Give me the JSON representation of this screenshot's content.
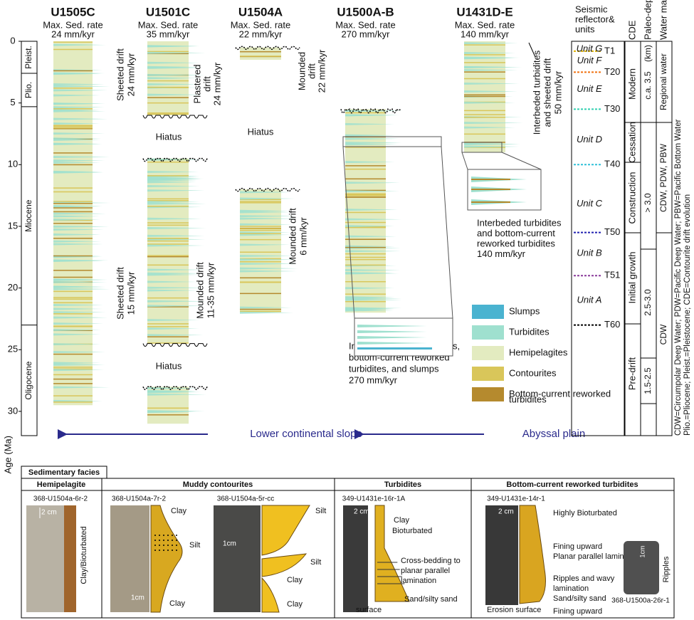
{
  "axis": {
    "label": "Age (Ma)",
    "ticks": [
      0,
      5,
      10,
      15,
      20,
      25,
      30
    ]
  },
  "epochs": [
    "Pleist.",
    "Plio.",
    "Miocene",
    "Oligocene"
  ],
  "sites": [
    {
      "name": "U1505C",
      "rate": "Max. Sed. rate",
      "value": "24 mm/kyr"
    },
    {
      "name": "U1501C",
      "rate": "Max. Sed. rate",
      "value": "35 mm/kyr"
    },
    {
      "name": "U1504A",
      "rate": "Max. Sed. rate",
      "value": "22 mm/kyr"
    },
    {
      "name": "U1500A-B",
      "rate": "Max. Sed. rate",
      "value": "270 mm/kyr"
    },
    {
      "name": "U1431D-E",
      "rate": "Max. Sed. rate",
      "value": "140 mm/kyr"
    }
  ],
  "annotations": {
    "sheeted_top": [
      "Sheeted drift",
      "24 mm/kyr"
    ],
    "plastered": [
      "Plastered",
      "drift",
      "24 mm/kyr"
    ],
    "mounded_top": [
      "Mounded",
      "drift",
      "22 mm/kyr"
    ],
    "hiatus": [
      "Hiatus",
      "Hiatus",
      "Hiatus"
    ],
    "sheeted_low": [
      "Sheeted drift",
      "15 mm/kyr"
    ],
    "mounded_mid": [
      "Mounded drift",
      "11-35 mm/kyr"
    ],
    "mounded_low": [
      "Mounded drift",
      "6 mm/kyr"
    ],
    "u1431_rot": [
      "Interbeded turbidites",
      "and sheeted drift",
      "50 mm/kyr"
    ],
    "u1431_inset": [
      "Interbeded turbidites",
      "and bottom-current",
      "reworked turbidites",
      "140 mm/kyr"
    ],
    "u1500_inset": [
      "Interbeded distal turbidites,",
      "bottom-current reworked",
      "turbidites, and slumps",
      "270 mm/kyr"
    ]
  },
  "seismic": {
    "title": [
      "Seismic",
      "reflector&",
      "units"
    ],
    "reflectors": [
      "T1",
      "T20",
      "T30",
      "T40",
      "T50",
      "T51",
      "T60"
    ],
    "units": [
      "Unit G",
      "Unit F",
      "Unit E",
      "Unit D",
      "Unit C",
      "Unit B",
      "Unit A"
    ]
  },
  "cde": {
    "title": "CDE",
    "phases": [
      "Modern",
      "Cessation",
      "Construction",
      "Initial growth",
      "Pre-drift"
    ]
  },
  "paleodepth": {
    "title": "Paleo-depth",
    "items": [
      "(km)",
      "c.a. 3.5",
      "> 3.0",
      "2.5-3.0",
      "1.5-2.5"
    ]
  },
  "watermass": {
    "title": "Water mass",
    "items": [
      "Regional water",
      "CDW, PDW, PBW",
      "CDW"
    ]
  },
  "legend": [
    "Slumps",
    "Turbidites",
    "Hemipelagites",
    "Contourites",
    "Bottom-current reworked",
    "turbidites"
  ],
  "arrows": [
    "Lower continental slope",
    "Abyssal plain"
  ],
  "footnote": [
    "CDW=Circumpolar Deep Water; PDW=Pacific Deep Water; PBW=Pacific Bottom Water",
    "Plio.=Pliocene; Pleist.=Pleistocene; CDE=Contourite drift evolution"
  ],
  "facies": {
    "title": "Sedimentary facies",
    "headers": [
      "Hemipelagite",
      "Muddy contourites",
      "Turbidites",
      "Bottom-current reworked turbidites"
    ],
    "hemipelagite": {
      "sample": "368-U1504a-6r-2",
      "scale": "2 cm",
      "label": "Clay/Bioturbated"
    },
    "contourite1": {
      "sample": "368-U1504a-7r-2",
      "scale": "1cm",
      "labels": [
        "Clay",
        "Silt",
        "Clay"
      ]
    },
    "contourite2": {
      "sample": "368-U1504a-5r-cc",
      "scale": "1cm",
      "labels": [
        "Silt",
        "Clay",
        "Silt",
        "Clay"
      ]
    },
    "turbidite": {
      "sample": "349-U1431e-16r-1A",
      "scale": "2 cm",
      "labels": [
        "Clay",
        "Bioturbated",
        "Cross-bedding to",
        "planar parallel",
        "lamination",
        "Sand/silty sand",
        "surface"
      ]
    },
    "reworked": {
      "sample": "349-U1431e-14r-1",
      "scale": "2 cm",
      "labels": [
        "Highly Bioturbated",
        "Fining upward",
        "Planar parallel lamination",
        "Ripples and wavy",
        "lamination",
        "Sand/silty sand",
        "Fining upward",
        "Erosion surface"
      ],
      "inset_sample": "368-U1500a-26r-1",
      "inset_scale": "1cm",
      "inset_label": "Ripples"
    }
  }
}
